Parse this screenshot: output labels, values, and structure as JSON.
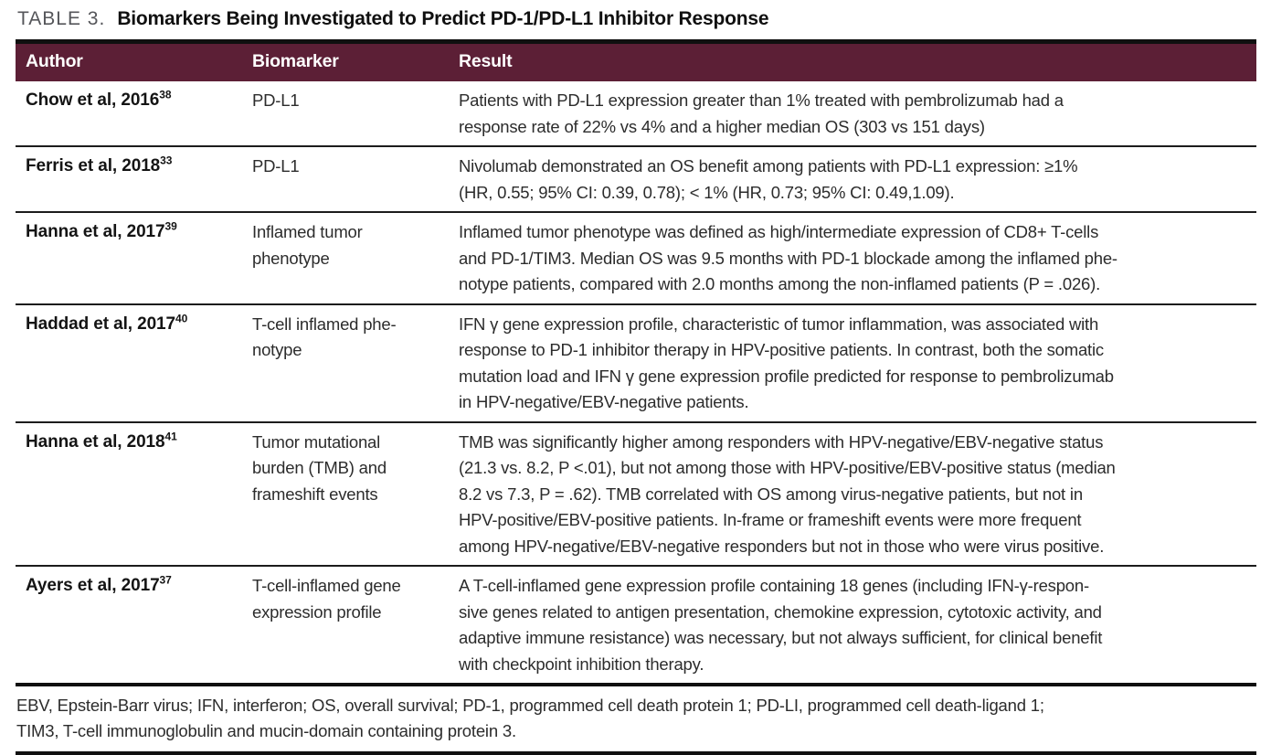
{
  "title": {
    "label": "TABLE 3.",
    "heading": "Biomarkers Being Investigated to Predict PD-1/PD-L1 Inhibitor Response"
  },
  "columns": [
    "Author",
    "Biomarker",
    "Result"
  ],
  "rows": [
    {
      "author": "Chow et al, 2016",
      "ref": "38",
      "biomarker": "PD-L1",
      "result": "Patients with PD-L1 expression greater than 1% treated with pembrolizumab had a\nresponse rate of 22% vs 4% and a higher median OS (303 vs 151 days)"
    },
    {
      "author": "Ferris et al, 2018",
      "ref": "33",
      "biomarker": "PD-L1",
      "result": "Nivolumab demonstrated an OS benefit among patients with PD-L1 expression: ≥1%\n(HR, 0.55; 95% CI: 0.39, 0.78); < 1% (HR, 0.73; 95% CI: 0.49,1.09)."
    },
    {
      "author": "Hanna et al, 2017",
      "ref": "39",
      "biomarker": "Inflamed tumor\nphenotype",
      "result": "Inflamed tumor phenotype was defined as high/intermediate expression of CD8+ T-cells\nand PD-1/TIM3. Median OS was 9.5 months with PD-1 blockade among the inflamed phe-\nnotype patients, compared with 2.0 months among the non-inflamed patients (P = .026)."
    },
    {
      "author": "Haddad et al, 2017",
      "ref": "40",
      "biomarker": "T-cell inflamed phe-\nnotype",
      "result": "IFN γ gene expression profile, characteristic of tumor inflammation, was associated with\nresponse to PD-1 inhibitor therapy in HPV-positive patients. In contrast, both the somatic\nmutation load and IFN γ gene expression profile predicted for response to pembrolizumab\nin HPV-negative/EBV-negative patients."
    },
    {
      "author": "Hanna et al, 2018",
      "ref": "41",
      "biomarker": "Tumor mutational\nburden (TMB) and\nframeshift events",
      "result": "TMB was significantly higher among responders with HPV-negative/EBV-negative status\n(21.3 vs. 8.2, P <.01), but not among those with HPV-positive/EBV-positive status (median\n8.2 vs 7.3, P = .62). TMB correlated with OS among virus-negative patients, but not in\nHPV-positive/EBV-positive patients. In-frame or frameshift events were more frequent\namong HPV-negative/EBV-negative responders but not in those who were virus positive."
    },
    {
      "author": "Ayers et al, 2017",
      "ref": "37",
      "biomarker": "T-cell-inflamed gene\nexpression profile",
      "result": "A T-cell-inflamed gene expression profile containing 18 genes (including IFN-γ-respon-\nsive genes related to antigen presentation, chemokine expression, cytotoxic activity, and\nadaptive immune resistance) was necessary, but not always sufficient, for clinical benefit\nwith checkpoint inhibition therapy."
    }
  ],
  "footnote": "EBV, Epstein-Barr virus; IFN, interferon; OS, overall survival; PD-1, programmed cell death protein 1; PD-LI, programmed cell death-ligand 1;\nTIM3, T-cell immunoglobulin and mucin-domain containing protein 3.",
  "colors": {
    "header_bg": "#5c1f36",
    "rule": "#101010",
    "title_label": "#55565a"
  }
}
